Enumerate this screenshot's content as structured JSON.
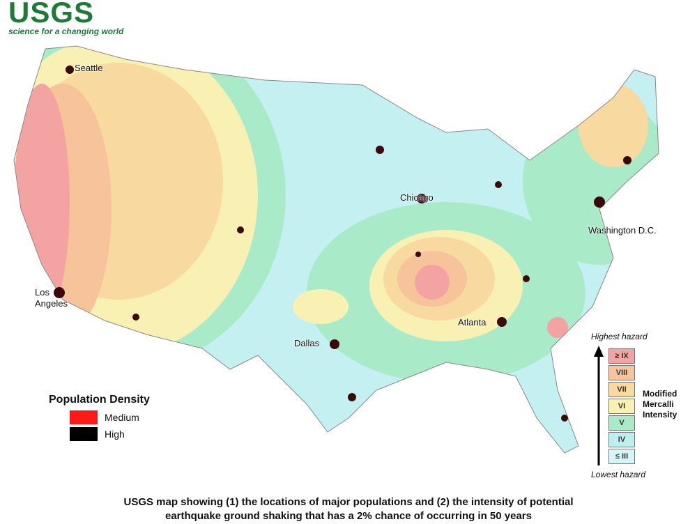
{
  "logo": {
    "name": "USGS",
    "tagline": "science for a changing world"
  },
  "cities": [
    {
      "label": "Seattle"
    },
    {
      "label": "Los Angeles"
    },
    {
      "label": "Chicago"
    },
    {
      "label": "Washington D.C."
    },
    {
      "label": "Atlanta"
    },
    {
      "label": "Dallas"
    }
  ],
  "population_legend": {
    "title": "Population Density",
    "items": [
      {
        "label": "Medium",
        "color": "#ff1a1a"
      },
      {
        "label": "High",
        "color": "#000000"
      }
    ]
  },
  "hazard_legend": {
    "top_label": "Highest hazard",
    "bottom_label": "Lowest hazard",
    "title": "Modified Mercalli Intensity",
    "classes": [
      {
        "label": "≥ IX",
        "color": "#f4a3a3"
      },
      {
        "label": "VIII",
        "color": "#f7c39a"
      },
      {
        "label": "VII",
        "color": "#f8d9a0"
      },
      {
        "label": "VI",
        "color": "#f9f1b3"
      },
      {
        "label": "V",
        "color": "#a9ebc8"
      },
      {
        "label": "IV",
        "color": "#bfeef0"
      },
      {
        "label": "≤ III",
        "color": "#d6f5f8"
      }
    ]
  },
  "caption": [
    "USGS map showing (1) the locations of major populations and (2) the intensity of potential",
    "earthquake ground shaking that has a 2% chance of occurring in 50 years"
  ]
}
